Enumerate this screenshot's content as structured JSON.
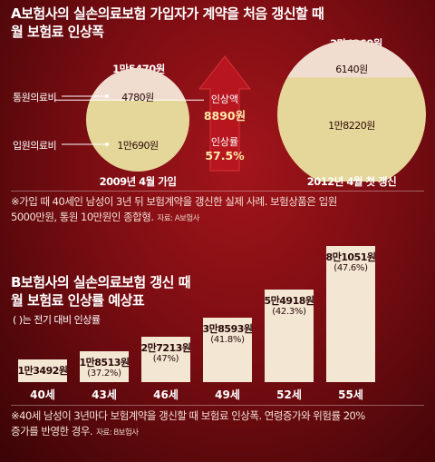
{
  "section_a": {
    "title_line1": "A보험사의 실손의료보험 가입자가 계약을 처음 갱신할 때",
    "title_line2": "월 보험료 인상폭",
    "note_line1": "※가입 때 40세인 남성이 3년 뒤 보험계약을 갱신한 실제 사례. 보험상품은 입원",
    "note_line2": "5000만원, 통원 10만원인 종합형.",
    "source": "자료: A보험사",
    "legend_outpatient": "통원의료비",
    "legend_inpatient": "입원의료비",
    "arrow": {
      "label1": "인상액",
      "value1": "8890원",
      "label2": "인상률",
      "value2": "57.5%"
    }
  },
  "section_b": {
    "title_line1": "B보험사의 실손의료보험 갱신 때",
    "title_line2": "월 보험료 인상률 예상표",
    "subtitle": "(   )는 전기 대비 인상률",
    "note_line1": "※40세 남성이 3년마다 보험계약을 갱신할 때 보험료 인상폭. 연령증가와 위험률 20%",
    "note_line2": "증가를 반영한 경우.",
    "source": "자료: B보험사"
  },
  "chart_data": [
    {
      "type": "pie",
      "title": "A보험사의 실손의료보험 가입자가 계약을 처음 갱신할 때 월 보험료 인상폭",
      "categories": [
        "2009년 4월 가입",
        "2012년 4월 첫 갱신"
      ],
      "totals": [
        "1만5470원",
        "2만4360원"
      ],
      "total_values": [
        15470,
        24360
      ],
      "series": [
        {
          "name": "통원의료비",
          "labels": [
            "4780원",
            "6140원"
          ],
          "values": [
            4780,
            6140
          ]
        },
        {
          "name": "입원의료비",
          "labels": [
            "1만690원",
            "1만8220원"
          ],
          "values": [
            10690,
            18220
          ]
        }
      ]
    },
    {
      "type": "bar",
      "title": "B보험사의 실손의료보험 갱신 때 월 보험료 인상률 예상표",
      "categories": [
        "40세",
        "43세",
        "46세",
        "49세",
        "52세",
        "55세"
      ],
      "values": [
        13492,
        18513,
        27213,
        38593,
        54918,
        81051
      ],
      "value_labels": [
        "1만3492원",
        "1만8513원",
        "2만7213원",
        "3만8593원",
        "5만4918원",
        "8만1051원"
      ],
      "pct_labels": [
        "",
        "(37.2%)",
        "(47%)",
        "(41.8%)",
        "(42.3%)",
        "(47.6%)"
      ],
      "ylim": [
        0,
        81051
      ]
    }
  ]
}
